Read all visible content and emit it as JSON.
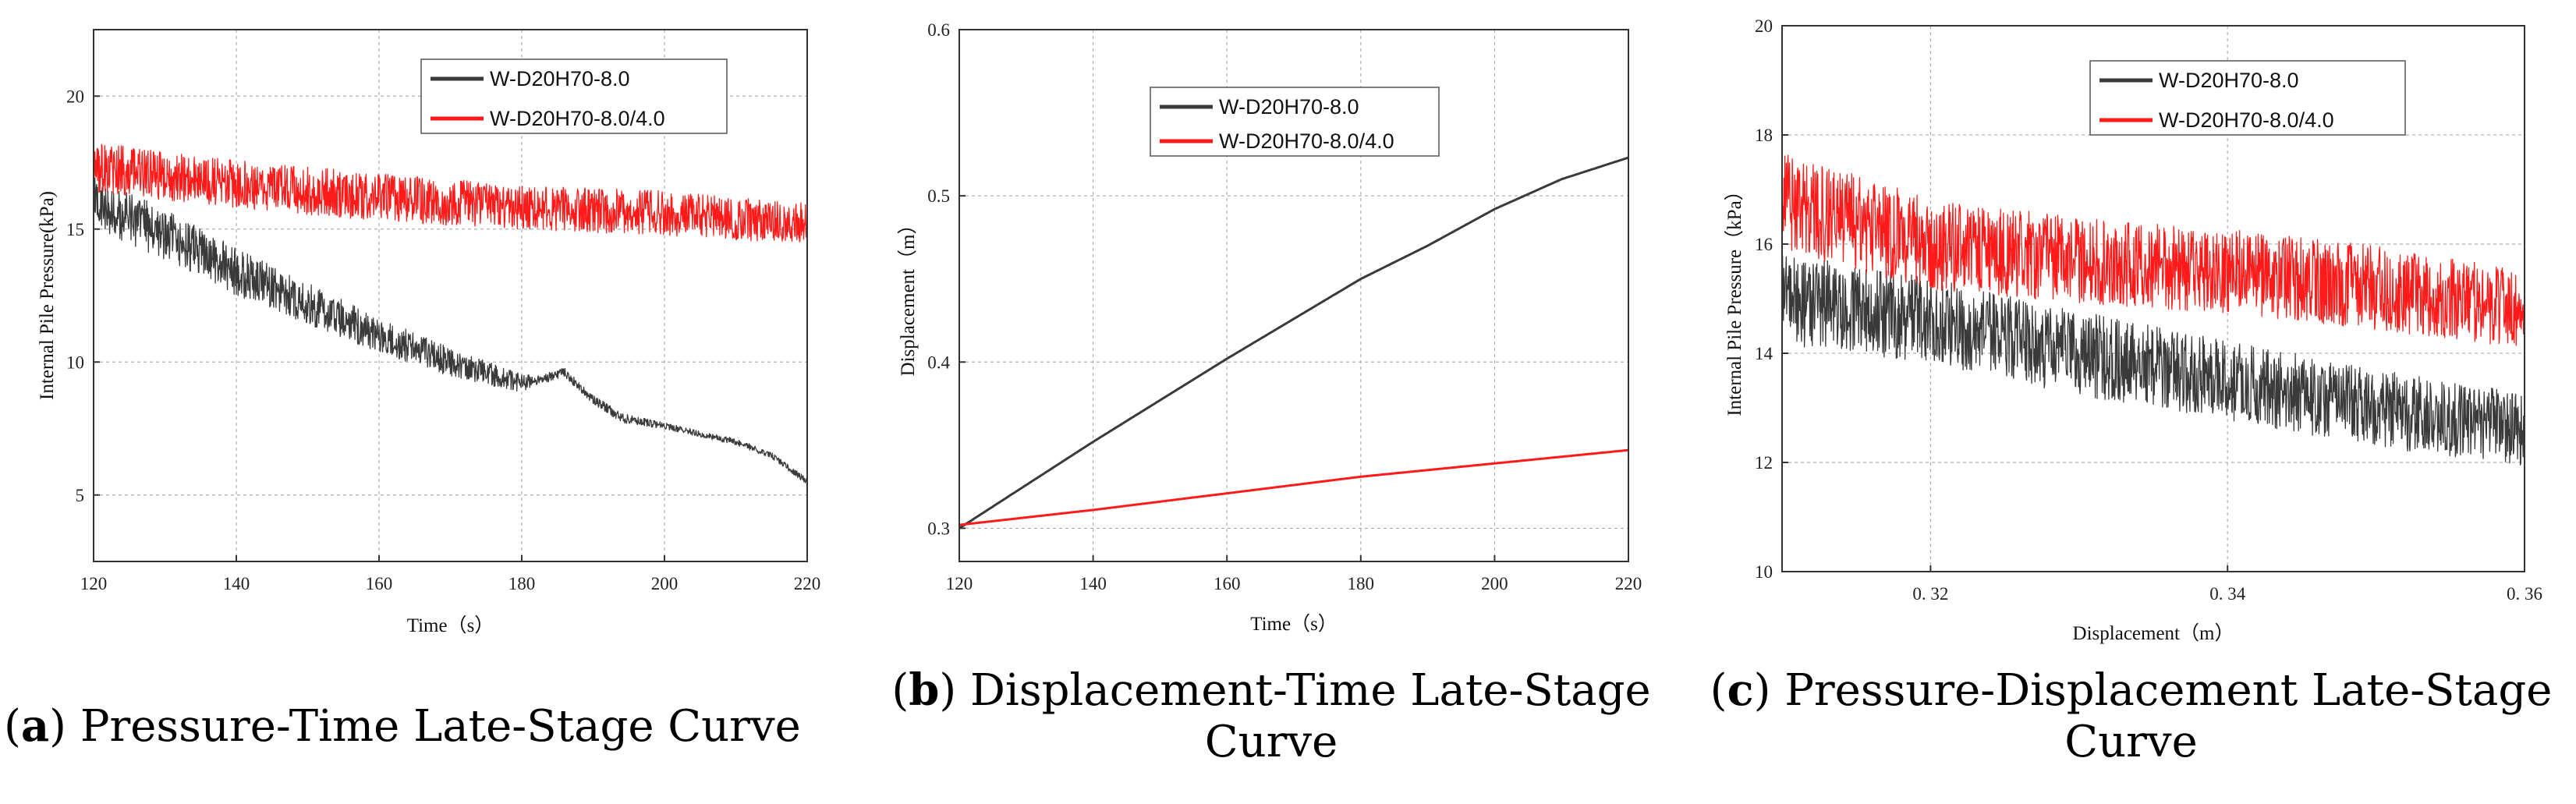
{
  "colors": {
    "series_black": "#3a3a3a",
    "series_red": "#ff1a1a",
    "grid": "#b0b0b0"
  },
  "captions": [
    {
      "letter": "a",
      "text": "Pressure-Time Late-Stage Curve"
    },
    {
      "letter": "b",
      "text": "Displacement-Time Late-Stage Curve"
    },
    {
      "letter": "c",
      "text": "Pressure-Displacement Late-Stage Curve"
    }
  ],
  "chart_data": [
    {
      "type": "line",
      "xlabel": "Time（s）",
      "ylabel": "Internal Pile Pressure(kPa)",
      "xlim": [
        120,
        220
      ],
      "ylim": [
        2.5,
        22.5
      ],
      "xticks": [
        120,
        140,
        160,
        180,
        200,
        220
      ],
      "yticks": [
        5,
        10,
        15,
        20
      ],
      "grid": true,
      "legend_position": "top-right",
      "series": [
        {
          "name": "W-D20H70-8.0",
          "color": "#3a3a3a",
          "x": [
            120,
            130,
            140,
            150,
            160,
            170,
            180,
            182,
            186,
            190,
            194,
            200,
            210,
            215,
            220
          ],
          "y": [
            16.0,
            14.8,
            13.4,
            12.2,
            11.0,
            10.0,
            9.2,
            9.3,
            9.6,
            8.6,
            7.9,
            7.6,
            7.0,
            6.5,
            5.5
          ],
          "noise": [
            1.6,
            1.6,
            1.5,
            1.3,
            1.1,
            0.9,
            0.6,
            0.3,
            0.3,
            0.3,
            0.3,
            0.2,
            0.2,
            0.2,
            0.2
          ]
        },
        {
          "name": "W-D20H70-8.0/4.0",
          "color": "#ff1a1a",
          "x": [
            120,
            140,
            160,
            180,
            200,
            220
          ],
          "y": [
            17.3,
            16.7,
            16.2,
            15.8,
            15.6,
            15.2
          ],
          "noise": [
            1.6,
            1.5,
            1.5,
            1.4,
            1.4,
            1.3
          ]
        }
      ]
    },
    {
      "type": "line",
      "xlabel": "Time（s）",
      "ylabel": "Displacement（m）",
      "xlim": [
        120,
        220
      ],
      "ylim": [
        0.28,
        0.6
      ],
      "xticks": [
        120,
        140,
        160,
        180,
        200,
        220
      ],
      "yticks": [
        0.3,
        0.4,
        0.5,
        0.6
      ],
      "grid": true,
      "legend_position": "top-right",
      "series": [
        {
          "name": "W-D20H70-8.0",
          "color": "#3a3a3a",
          "x": [
            120,
            140,
            160,
            180,
            190,
            200,
            210,
            220
          ],
          "y": [
            0.3,
            0.352,
            0.402,
            0.45,
            0.47,
            0.492,
            0.51,
            0.523
          ],
          "noise": [
            0,
            0,
            0,
            0,
            0,
            0,
            0,
            0
          ]
        },
        {
          "name": "W-D20H70-8.0/4.0",
          "color": "#ff1a1a",
          "x": [
            120,
            140,
            160,
            180,
            200,
            220
          ],
          "y": [
            0.302,
            0.311,
            0.321,
            0.331,
            0.339,
            0.347
          ],
          "noise": [
            0,
            0,
            0,
            0,
            0,
            0
          ]
        }
      ]
    },
    {
      "type": "line",
      "xlabel": "Displacement（m）",
      "ylabel": "Internal Pile Pressure（kPa）",
      "xlim": [
        0.31,
        0.36
      ],
      "ylim": [
        10,
        20
      ],
      "xticks": [
        0.32,
        0.34,
        0.36
      ],
      "xticklabels": [
        "0. 32",
        "0. 34",
        "0. 36"
      ],
      "yticks": [
        10,
        12,
        14,
        16,
        18,
        20
      ],
      "grid": true,
      "legend_position": "top-right",
      "series": [
        {
          "name": "W-D20H70-8.0",
          "color": "#3a3a3a",
          "x": [
            0.31,
            0.32,
            0.33,
            0.34,
            0.35,
            0.36
          ],
          "y": [
            15.0,
            14.6,
            14.0,
            13.5,
            13.0,
            12.6
          ],
          "noise": [
            1.4,
            1.3,
            1.3,
            1.2,
            1.2,
            1.1
          ]
        },
        {
          "name": "W-D20H70-8.0/4.0",
          "color": "#ff1a1a",
          "x": [
            0.31,
            0.32,
            0.33,
            0.34,
            0.35,
            0.36
          ],
          "y": [
            16.8,
            16.0,
            15.7,
            15.5,
            15.2,
            14.8
          ],
          "noise": [
            1.5,
            1.4,
            1.3,
            1.3,
            1.3,
            1.2
          ]
        }
      ]
    }
  ]
}
